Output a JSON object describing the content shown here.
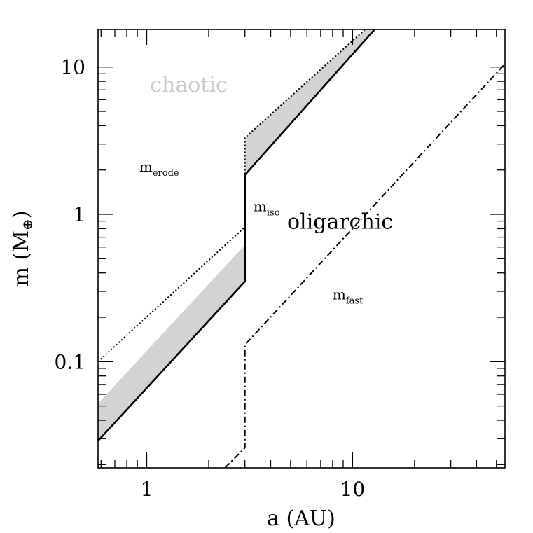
{
  "chart_data": {
    "type": "line",
    "x_scale": "log",
    "y_scale": "log",
    "xlim": [
      0.58,
      55
    ],
    "ylim": [
      0.019,
      18
    ],
    "xlabel": "a (AU)",
    "ylabel": "m (M",
    "ylabel_sym": "⊕",
    "ylabel_close": ")",
    "x_ticks": [
      {
        "v": 1,
        "label": "1"
      },
      {
        "v": 10,
        "label": "10"
      }
    ],
    "y_ticks": [
      {
        "v": 0.1,
        "label": "0.1"
      },
      {
        "v": 1,
        "label": "1"
      },
      {
        "v": 10,
        "label": "10"
      }
    ],
    "shaded_band": {
      "color": "#d3d3d3",
      "upper": [
        [
          0.58,
          0.052
        ],
        [
          3.0,
          0.62
        ],
        [
          3.0,
          3.3
        ],
        [
          11.5,
          18
        ]
      ],
      "lower": [
        [
          0.58,
          0.029
        ],
        [
          3.0,
          0.35
        ],
        [
          3.0,
          1.85
        ],
        [
          12.8,
          18
        ]
      ]
    },
    "series": [
      {
        "key": "m_iso",
        "style": "solid",
        "points": [
          [
            0.58,
            0.029
          ],
          [
            3.0,
            0.35
          ],
          [
            3.0,
            1.85
          ],
          [
            12.8,
            18
          ]
        ]
      },
      {
        "key": "m_erode",
        "style": "dotted",
        "points": [
          [
            0.58,
            0.1
          ],
          [
            3.0,
            0.82
          ],
          [
            3.0,
            3.3
          ],
          [
            11.5,
            18
          ]
        ]
      },
      {
        "key": "m_fast",
        "style": "dashdot",
        "points": [
          [
            2.4,
            0.019
          ],
          [
            3.0,
            0.026
          ],
          [
            3.0,
            0.13
          ],
          [
            55,
            10.5
          ]
        ]
      }
    ],
    "annotations": [
      {
        "key": "chaotic",
        "text": "chaotic",
        "color": "#c9c9c9"
      },
      {
        "key": "oligarchic",
        "text": "oligarchic",
        "color": "#000000"
      },
      {
        "key": "m_erode",
        "text": "m",
        "sub": "erode"
      },
      {
        "key": "m_iso",
        "text": "m",
        "sub": "iso"
      },
      {
        "key": "m_fast",
        "text": "m",
        "sub": "fast"
      }
    ]
  }
}
